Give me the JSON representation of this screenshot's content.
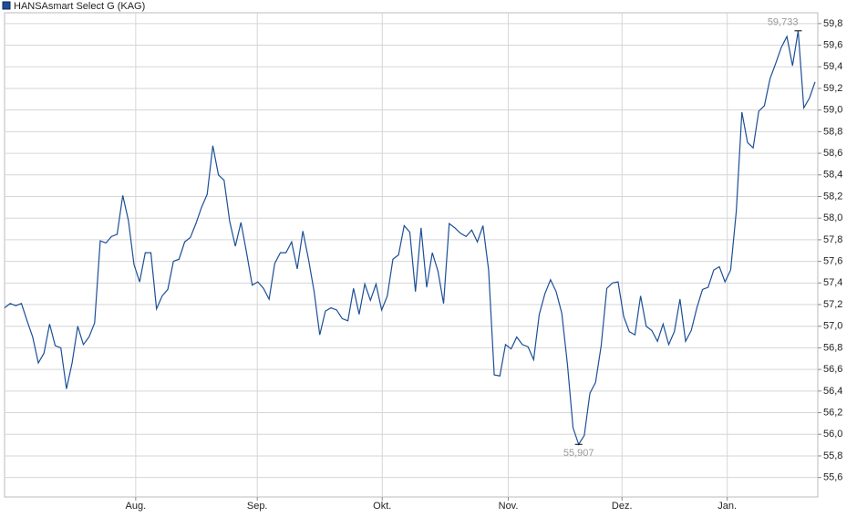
{
  "chart_data": {
    "type": "line",
    "series": [
      {
        "name": "HANSAsmart Select G (KAG)",
        "color": "#1c4f97",
        "values": [
          57.17,
          57.21,
          57.19,
          57.21,
          57.05,
          56.9,
          56.66,
          56.75,
          57.02,
          56.82,
          56.8,
          56.42,
          56.66,
          57.0,
          56.83,
          56.9,
          57.03,
          57.79,
          57.77,
          57.83,
          57.85,
          58.21,
          57.98,
          57.57,
          57.41,
          57.68,
          57.68,
          57.16,
          57.28,
          57.34,
          57.6,
          57.62,
          57.78,
          57.82,
          57.95,
          58.1,
          58.22,
          58.67,
          58.4,
          58.35,
          57.97,
          57.74,
          57.96,
          57.68,
          57.38,
          57.41,
          57.35,
          57.25,
          57.58,
          57.68,
          57.68,
          57.78,
          57.53,
          57.88,
          57.62,
          57.32,
          56.92,
          57.14,
          57.17,
          57.15,
          57.07,
          57.05,
          57.35,
          57.11,
          57.39,
          57.24,
          57.39,
          57.15,
          57.28,
          57.62,
          57.66,
          57.93,
          57.87,
          57.32,
          57.91,
          57.36,
          57.68,
          57.51,
          57.21,
          57.95,
          57.91,
          57.86,
          57.83,
          57.89,
          57.78,
          57.93,
          57.52,
          56.55,
          56.54,
          56.83,
          56.79,
          56.9,
          56.83,
          56.81,
          56.69,
          57.11,
          57.3,
          57.43,
          57.32,
          57.12,
          56.65,
          56.06,
          55.907,
          55.99,
          56.38,
          56.48,
          56.82,
          57.35,
          57.4,
          57.41,
          57.09,
          56.95,
          56.92,
          57.28,
          57.0,
          56.96,
          56.86,
          57.02,
          56.83,
          56.95,
          57.25,
          56.86,
          56.96,
          57.17,
          57.34,
          57.36,
          57.52,
          57.55,
          57.41,
          57.52,
          58.06,
          58.98,
          58.7,
          58.65,
          58.99,
          59.04,
          59.29,
          59.43,
          59.58,
          59.68,
          59.41,
          59.733,
          59.02,
          59.11,
          59.26
        ]
      }
    ],
    "xlim": [
      0,
      144
    ],
    "xticks": [
      {
        "value": 23.3,
        "label": "Aug."
      },
      {
        "value": 44.9,
        "label": "Sep."
      },
      {
        "value": 67.1,
        "label": "Okt."
      },
      {
        "value": 89.5,
        "label": "Nov."
      },
      {
        "value": 109.7,
        "label": "Dez."
      },
      {
        "value": 128.4,
        "label": "Jan."
      }
    ],
    "ylim": [
      55.42,
      59.9
    ],
    "yticks": [
      {
        "value": 55.6,
        "label": "55,6"
      },
      {
        "value": 55.8,
        "label": "55,8"
      },
      {
        "value": 56.0,
        "label": "56,0"
      },
      {
        "value": 56.2,
        "label": "56,2"
      },
      {
        "value": 56.4,
        "label": "56,4"
      },
      {
        "value": 56.6,
        "label": "56,6"
      },
      {
        "value": 56.8,
        "label": "56,8"
      },
      {
        "value": 57.0,
        "label": "57,0"
      },
      {
        "value": 57.2,
        "label": "57,2"
      },
      {
        "value": 57.4,
        "label": "57,4"
      },
      {
        "value": 57.6,
        "label": "57,6"
      },
      {
        "value": 57.8,
        "label": "57,8"
      },
      {
        "value": 58.0,
        "label": "58,0"
      },
      {
        "value": 58.2,
        "label": "58,2"
      },
      {
        "value": 58.4,
        "label": "58,4"
      },
      {
        "value": 58.6,
        "label": "58,6"
      },
      {
        "value": 58.8,
        "label": "58,8"
      },
      {
        "value": 59.0,
        "label": "59,0"
      },
      {
        "value": 59.2,
        "label": "59,2"
      },
      {
        "value": 59.4,
        "label": "59,4"
      },
      {
        "value": 59.6,
        "label": "59,6"
      },
      {
        "value": 59.8,
        "label": "59,8"
      }
    ],
    "grid": true,
    "annotations": [
      {
        "x": 141,
        "y": 59.733,
        "label": "59,733",
        "position": "above"
      },
      {
        "x": 102,
        "y": 55.907,
        "label": "55,907",
        "position": "below"
      }
    ]
  }
}
